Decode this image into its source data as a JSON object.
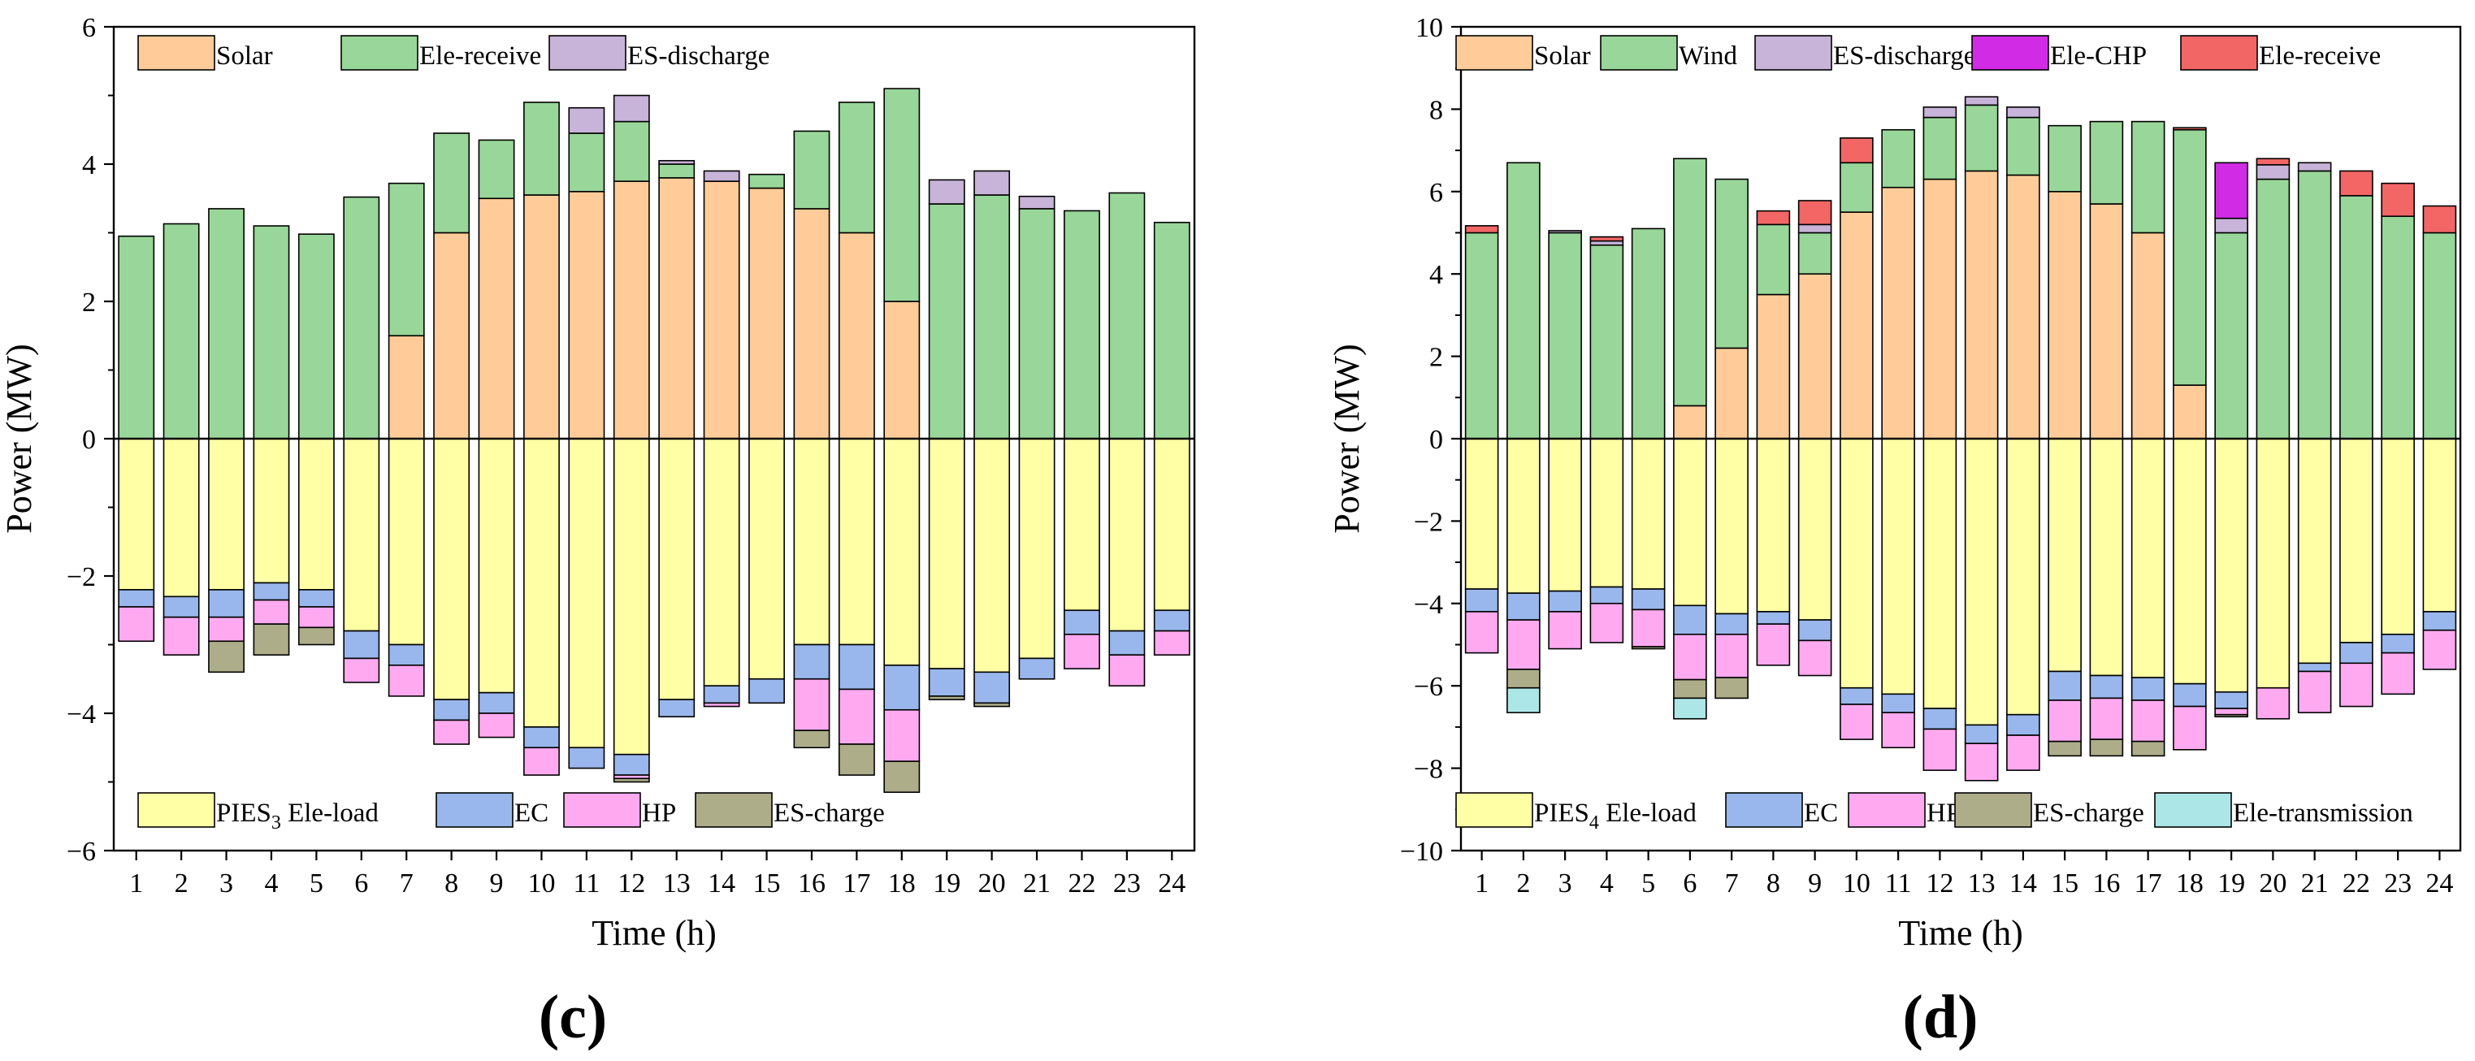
{
  "colors": {
    "solar": "#FFCC99",
    "wind": "#99D699",
    "ele_receive_c": "#99D699",
    "es_discharge": "#C8B4D8",
    "ele_chp": "#D22BE6",
    "ele_receive_d": "#F26666",
    "ele_load": "#FFFFA6",
    "ec": "#99B7EC",
    "hp": "#FFAAF0",
    "es_charge": "#ADAD8A",
    "ele_transmission": "#ADE6E6"
  },
  "chart_data": [
    {
      "type": "bar",
      "stacked": true,
      "panel_label": "(c)",
      "xlabel": "Time (h)",
      "ylabel": "Power (MW)",
      "ylim": [
        -6,
        6
      ],
      "yticks": [
        -6,
        -4,
        -2,
        0,
        2,
        4,
        6
      ],
      "ytick_labels": [
        "−6",
        "−4",
        "−2",
        "0",
        "2",
        "4",
        "6"
      ],
      "categories": [
        "1",
        "2",
        "3",
        "4",
        "5",
        "6",
        "7",
        "8",
        "9",
        "10",
        "11",
        "12",
        "13",
        "14",
        "15",
        "16",
        "17",
        "18",
        "19",
        "20",
        "21",
        "22",
        "23",
        "24"
      ],
      "legend_top": [
        "Solar",
        "Ele-receive",
        "ES-discharge"
      ],
      "legend_bottom": [
        {
          "main": "PIES",
          "sub": "3",
          "rest": " Ele-load"
        },
        {
          "main": "EC",
          "sub": "",
          "rest": ""
        },
        {
          "main": "HP",
          "sub": "",
          "rest": ""
        },
        {
          "main": "ES-charge",
          "sub": "",
          "rest": ""
        }
      ],
      "positive_series": [
        {
          "name": "Solar",
          "color_key": "solar",
          "values": [
            0,
            0,
            0,
            0,
            0,
            0,
            1.5,
            3.0,
            3.5,
            3.55,
            3.6,
            3.75,
            3.8,
            3.75,
            3.65,
            3.35,
            3.0,
            2.0,
            0,
            0,
            0,
            0,
            0,
            0
          ]
        },
        {
          "name": "Ele-receive",
          "color_key": "ele_receive_c",
          "values": [
            2.95,
            3.13,
            3.35,
            3.1,
            2.98,
            3.52,
            2.22,
            1.45,
            0.85,
            1.35,
            0.85,
            0.87,
            0.2,
            0,
            0.2,
            1.13,
            1.9,
            3.1,
            3.42,
            3.55,
            3.35,
            3.32,
            3.58,
            3.15
          ]
        },
        {
          "name": "ES-discharge",
          "color_key": "es_discharge",
          "values": [
            0,
            0,
            0,
            0,
            0,
            0,
            0,
            0,
            0,
            0,
            0.37,
            0.38,
            0.05,
            0.15,
            0,
            0,
            0,
            0,
            0.35,
            0.35,
            0.18,
            0,
            0,
            0
          ]
        }
      ],
      "negative_series": [
        {
          "name": "Ele-load",
          "color_key": "ele_load",
          "values": [
            -2.2,
            -2.3,
            -2.2,
            -2.1,
            -2.2,
            -2.8,
            -3.0,
            -3.8,
            -3.7,
            -4.2,
            -4.5,
            -4.6,
            -3.8,
            -3.6,
            -3.5,
            -3.0,
            -3.0,
            -3.3,
            -3.35,
            -3.4,
            -3.2,
            -2.5,
            -2.8,
            -2.5
          ]
        },
        {
          "name": "EC",
          "color_key": "ec",
          "values": [
            -0.25,
            -0.3,
            -0.4,
            -0.25,
            -0.25,
            -0.4,
            -0.3,
            -0.3,
            -0.3,
            -0.3,
            -0.3,
            -0.3,
            -0.25,
            -0.25,
            -0.35,
            -0.5,
            -0.65,
            -0.65,
            -0.4,
            -0.45,
            -0.3,
            -0.35,
            -0.35,
            -0.3
          ]
        },
        {
          "name": "HP",
          "color_key": "hp",
          "values": [
            -0.5,
            -0.55,
            -0.35,
            -0.35,
            -0.3,
            -0.35,
            -0.45,
            -0.35,
            -0.35,
            -0.4,
            0,
            -0.05,
            0,
            -0.05,
            0,
            -0.75,
            -0.8,
            -0.75,
            0,
            0,
            0,
            -0.5,
            -0.45,
            -0.35
          ]
        },
        {
          "name": "ES-charge",
          "color_key": "es_charge",
          "values": [
            0,
            0,
            -0.45,
            -0.45,
            -0.25,
            0,
            0,
            0,
            0,
            0,
            0,
            -0.05,
            0,
            0,
            0,
            -0.25,
            -0.45,
            -0.45,
            -0.05,
            -0.05,
            0,
            0,
            0,
            0
          ]
        }
      ]
    },
    {
      "type": "bar",
      "stacked": true,
      "panel_label": "(d)",
      "xlabel": "Time (h)",
      "ylabel": "Power (MW)",
      "ylim": [
        -10,
        10
      ],
      "yticks": [
        -10,
        -8,
        -6,
        -4,
        -2,
        0,
        2,
        4,
        6,
        8,
        10
      ],
      "ytick_labels": [
        "−10",
        "−8",
        "−6",
        "−4",
        "−2",
        "0",
        "2",
        "4",
        "6",
        "8",
        "10"
      ],
      "categories": [
        "1",
        "2",
        "3",
        "4",
        "5",
        "6",
        "7",
        "8",
        "9",
        "10",
        "11",
        "12",
        "13",
        "14",
        "15",
        "16",
        "17",
        "18",
        "19",
        "20",
        "21",
        "22",
        "23",
        "24"
      ],
      "legend_top": [
        "Solar",
        "Wind",
        "ES-discharge",
        "Ele-CHP",
        "Ele-receive"
      ],
      "legend_bottom": [
        {
          "main": "PIES",
          "sub": "4",
          "rest": " Ele-load"
        },
        {
          "main": "EC",
          "sub": "",
          "rest": ""
        },
        {
          "main": "HP",
          "sub": "",
          "rest": ""
        },
        {
          "main": "ES-charge",
          "sub": "",
          "rest": ""
        },
        {
          "main": "Ele-transmission",
          "sub": "",
          "rest": ""
        }
      ],
      "positive_series": [
        {
          "name": "Solar",
          "color_key": "solar",
          "values": [
            0,
            0,
            0,
            0,
            0,
            0.8,
            2.2,
            3.5,
            4.0,
            5.5,
            6.1,
            6.3,
            6.5,
            6.4,
            6.0,
            5.7,
            5.0,
            1.3,
            0,
            0,
            0,
            0,
            0,
            0
          ]
        },
        {
          "name": "Wind",
          "color_key": "wind",
          "values": [
            5.0,
            6.7,
            5.0,
            4.7,
            5.1,
            6.0,
            4.1,
            1.7,
            1.0,
            1.2,
            1.4,
            1.5,
            1.6,
            1.4,
            1.6,
            2.0,
            2.7,
            6.2,
            5.0,
            6.3,
            6.5,
            5.9,
            5.4,
            5.0
          ]
        },
        {
          "name": "ES-discharge",
          "color_key": "es_discharge",
          "values": [
            0,
            0,
            0.05,
            0.1,
            0,
            0,
            0,
            0,
            0.2,
            0,
            0,
            0.25,
            0.2,
            0.25,
            0,
            0,
            0,
            0,
            0.35,
            0.35,
            0.2,
            0,
            0,
            0
          ]
        },
        {
          "name": "Ele-CHP",
          "color_key": "ele_chp",
          "values": [
            0,
            0,
            0,
            0,
            0,
            0,
            0,
            0,
            0,
            0,
            0,
            0,
            0,
            0,
            0,
            0,
            0,
            0,
            1.35,
            0,
            0,
            0,
            0,
            0
          ]
        },
        {
          "name": "Ele-receive",
          "color_key": "ele_receive_d",
          "values": [
            0.17,
            0,
            0,
            0.1,
            0,
            0,
            0,
            0.33,
            0.58,
            0.6,
            0,
            0,
            0,
            0,
            0,
            0,
            0,
            0.05,
            0,
            0.15,
            0,
            0.6,
            0.8,
            0.65
          ]
        }
      ],
      "negative_series": [
        {
          "name": "Ele-load",
          "color_key": "ele_load",
          "values": [
            -3.65,
            -3.75,
            -3.7,
            -3.6,
            -3.65,
            -4.05,
            -4.25,
            -4.2,
            -4.4,
            -6.05,
            -6.2,
            -6.55,
            -6.95,
            -6.7,
            -5.65,
            -5.75,
            -5.8,
            -5.95,
            -6.15,
            -6.05,
            -5.45,
            -4.95,
            -4.75,
            -4.2
          ]
        },
        {
          "name": "EC",
          "color_key": "ec",
          "values": [
            -0.55,
            -0.65,
            -0.5,
            -0.4,
            -0.5,
            -0.7,
            -0.5,
            -0.3,
            -0.5,
            -0.4,
            -0.45,
            -0.5,
            -0.45,
            -0.5,
            -0.7,
            -0.55,
            -0.55,
            -0.55,
            -0.4,
            0,
            -0.2,
            -0.5,
            -0.45,
            -0.45
          ]
        },
        {
          "name": "HP",
          "color_key": "hp",
          "values": [
            -1.0,
            -1.2,
            -0.9,
            -0.95,
            -0.9,
            -1.1,
            -1.05,
            -1.0,
            -0.85,
            -0.85,
            -0.85,
            -1.0,
            -0.9,
            -0.85,
            -1.0,
            -1.0,
            -1.0,
            -1.05,
            -0.15,
            -0.75,
            -1.0,
            -1.05,
            -1.0,
            -0.95
          ]
        },
        {
          "name": "ES-charge",
          "color_key": "es_charge",
          "values": [
            0,
            -0.45,
            0,
            0,
            -0.05,
            -0.45,
            -0.5,
            0,
            0,
            0,
            0,
            0,
            0,
            0,
            -0.35,
            -0.4,
            -0.35,
            0,
            -0.05,
            0,
            0,
            0,
            0,
            0
          ]
        },
        {
          "name": "Ele-transmission",
          "color_key": "ele_transmission",
          "values": [
            0,
            -0.6,
            0,
            0,
            0,
            -0.5,
            0,
            0,
            0,
            0,
            0,
            0,
            0,
            0,
            0,
            0,
            0,
            0,
            0,
            0,
            0,
            0,
            0,
            0
          ]
        }
      ]
    }
  ]
}
